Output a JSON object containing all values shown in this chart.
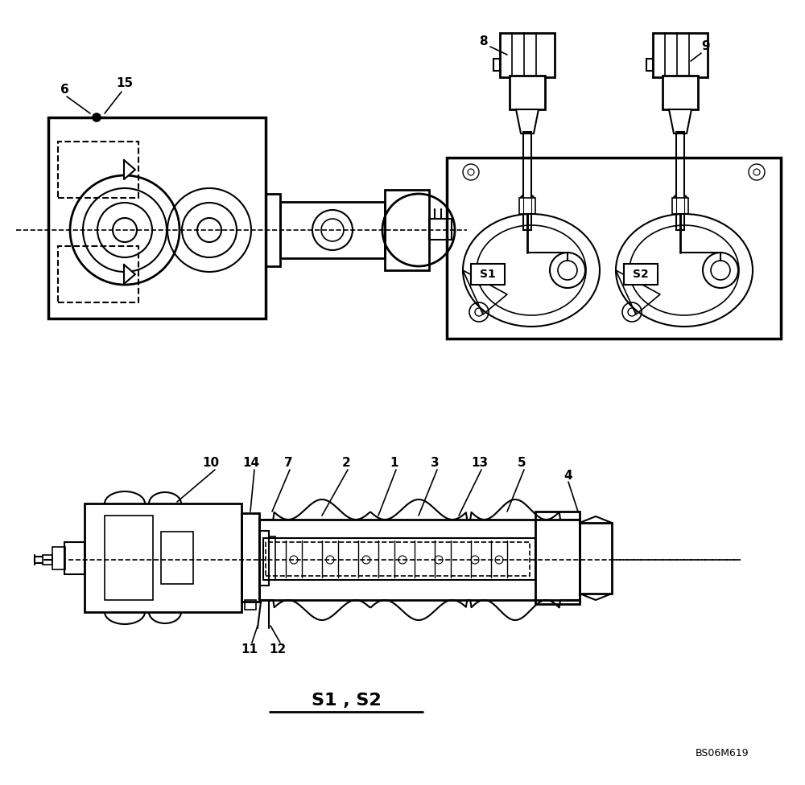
{
  "title": "S1 , S2",
  "watermark": "BS06M619",
  "bg_color": "#ffffff",
  "line_color": "#000000"
}
